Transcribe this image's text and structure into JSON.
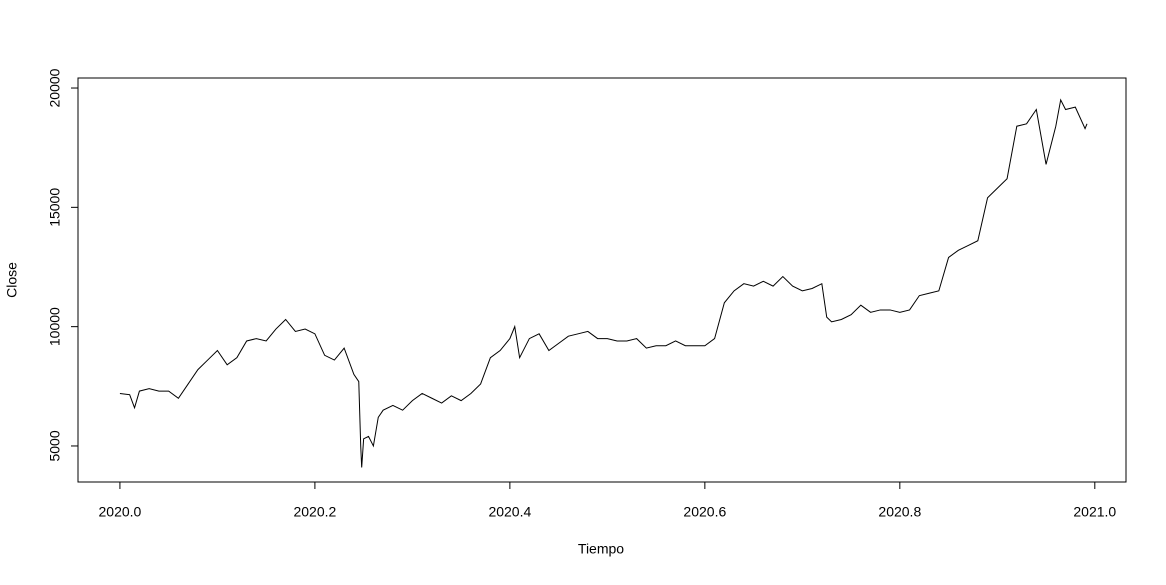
{
  "chart_data": {
    "type": "line",
    "xlabel": "Tiempo",
    "ylabel": "Close",
    "x": [
      2020.0,
      2020.01,
      2020.015,
      2020.02,
      2020.03,
      2020.04,
      2020.05,
      2020.06,
      2020.07,
      2020.08,
      2020.09,
      2020.1,
      2020.11,
      2020.12,
      2020.13,
      2020.14,
      2020.15,
      2020.16,
      2020.17,
      2020.18,
      2020.19,
      2020.2,
      2020.21,
      2020.22,
      2020.23,
      2020.24,
      2020.245,
      2020.247,
      2020.248,
      2020.25,
      2020.255,
      2020.26,
      2020.265,
      2020.27,
      2020.28,
      2020.29,
      2020.3,
      2020.31,
      2020.32,
      2020.33,
      2020.34,
      2020.35,
      2020.36,
      2020.37,
      2020.38,
      2020.39,
      2020.4,
      2020.405,
      2020.41,
      2020.42,
      2020.43,
      2020.44,
      2020.45,
      2020.46,
      2020.47,
      2020.48,
      2020.49,
      2020.5,
      2020.51,
      2020.52,
      2020.53,
      2020.54,
      2020.55,
      2020.56,
      2020.57,
      2020.58,
      2020.59,
      2020.6,
      2020.61,
      2020.62,
      2020.63,
      2020.64,
      2020.65,
      2020.66,
      2020.67,
      2020.68,
      2020.69,
      2020.7,
      2020.71,
      2020.72,
      2020.725,
      2020.73,
      2020.74,
      2020.75,
      2020.76,
      2020.77,
      2020.78,
      2020.79,
      2020.8,
      2020.81,
      2020.82,
      2020.83,
      2020.84,
      2020.85,
      2020.86,
      2020.87,
      2020.88,
      2020.89,
      2020.9,
      2020.91,
      2020.92,
      2020.93,
      2020.94,
      2020.95,
      2020.96,
      2020.965,
      2020.97,
      2020.98,
      2020.99,
      2020.992
    ],
    "series": [
      {
        "color": "#000000",
        "values": [
          7200,
          7150,
          6600,
          7300,
          7400,
          7300,
          7300,
          7000,
          7600,
          8200,
          8600,
          9000,
          8400,
          8700,
          9400,
          9500,
          9400,
          9900,
          10300,
          9800,
          9900,
          9700,
          8800,
          8600,
          9100,
          8000,
          7700,
          5000,
          4100,
          5300,
          5400,
          5000,
          6200,
          6500,
          6700,
          6500,
          6900,
          7200,
          7000,
          6800,
          7100,
          6900,
          7200,
          7600,
          8700,
          9000,
          9500,
          10000,
          8700,
          9500,
          9700,
          9000,
          9300,
          9600,
          9700,
          9800,
          9500,
          9500,
          9400,
          9400,
          9500,
          9100,
          9200,
          9200,
          9400,
          9200,
          9200,
          9200,
          9500,
          11000,
          11500,
          11800,
          11700,
          11900,
          11700,
          12100,
          11700,
          11500,
          11600,
          11800,
          10400,
          10200,
          10300,
          10500,
          10900,
          10600,
          10700,
          10700,
          10600,
          10700,
          11300,
          11400,
          11500,
          12900,
          13200,
          13400,
          13600,
          15400,
          15800,
          16200,
          18400,
          18500,
          19100,
          16800,
          18400,
          19500,
          19100,
          19200,
          18300,
          18500
        ]
      }
    ],
    "xlim": [
      2019.957,
      2021.032
    ],
    "ylim": [
      3490,
      20420
    ],
    "xticks": [
      {
        "value": 2020.0,
        "label": "2020.0"
      },
      {
        "value": 2020.2,
        "label": "2020.2"
      },
      {
        "value": 2020.4,
        "label": "2020.4"
      },
      {
        "value": 2020.6,
        "label": "2020.6"
      },
      {
        "value": 2020.8,
        "label": "2020.8"
      },
      {
        "value": 2021.0,
        "label": "2021.0"
      }
    ],
    "yticks": [
      5000,
      10000,
      15000,
      20000
    ]
  }
}
